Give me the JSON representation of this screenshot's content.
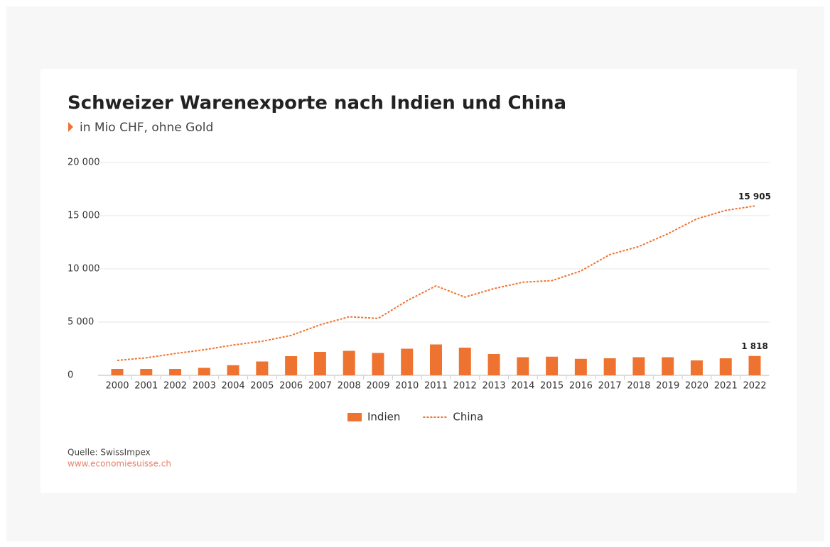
{
  "chart_data": {
    "type": "bar-line",
    "title": "Schweizer Warenexporte nach Indien und China",
    "subtitle": "in Mio CHF, ohne Gold",
    "categories": [
      "2000",
      "2001",
      "2002",
      "2003",
      "2004",
      "2005",
      "2006",
      "2007",
      "2008",
      "2009",
      "2010",
      "2011",
      "2012",
      "2013",
      "2014",
      "2015",
      "2016",
      "2017",
      "2018",
      "2019",
      "2020",
      "2021",
      "2022"
    ],
    "series": [
      {
        "name": "Indien",
        "type": "bar",
        "color": "#ee7330",
        "values": [
          600,
          600,
          600,
          700,
          950,
          1300,
          1800,
          2200,
          2300,
          2100,
          2500,
          2900,
          2600,
          2000,
          1700,
          1750,
          1550,
          1600,
          1700,
          1700,
          1400,
          1600,
          1818
        ],
        "value_labels": [
          null,
          null,
          null,
          null,
          null,
          null,
          null,
          null,
          null,
          null,
          null,
          null,
          null,
          null,
          null,
          null,
          null,
          null,
          null,
          null,
          null,
          null,
          "1 818"
        ]
      },
      {
        "name": "China",
        "type": "line",
        "style": "dotted",
        "color": "#ee7330",
        "values": [
          1400,
          1650,
          2050,
          2400,
          2850,
          3200,
          3750,
          4750,
          5500,
          5350,
          7000,
          8400,
          7350,
          8150,
          8750,
          8900,
          9800,
          11350,
          12100,
          13300,
          14700,
          15500,
          15905
        ],
        "value_labels": [
          null,
          null,
          null,
          null,
          null,
          null,
          null,
          null,
          null,
          null,
          null,
          null,
          null,
          null,
          null,
          null,
          null,
          null,
          null,
          null,
          null,
          null,
          "15 905"
        ]
      }
    ],
    "ylim": [
      0,
      20000
    ],
    "yticks": [
      0,
      {
        "value": 5000,
        "label": "5 000"
      },
      {
        "value": 10000,
        "label": "10 000"
      },
      {
        "value": 15000,
        "label": "15 000"
      },
      {
        "value": 20000,
        "label": "20 000"
      }
    ],
    "grid": true,
    "legend": "bottom",
    "source": "Quelle: SwissImpex",
    "source_url": "www.economiesuisse.ch"
  }
}
